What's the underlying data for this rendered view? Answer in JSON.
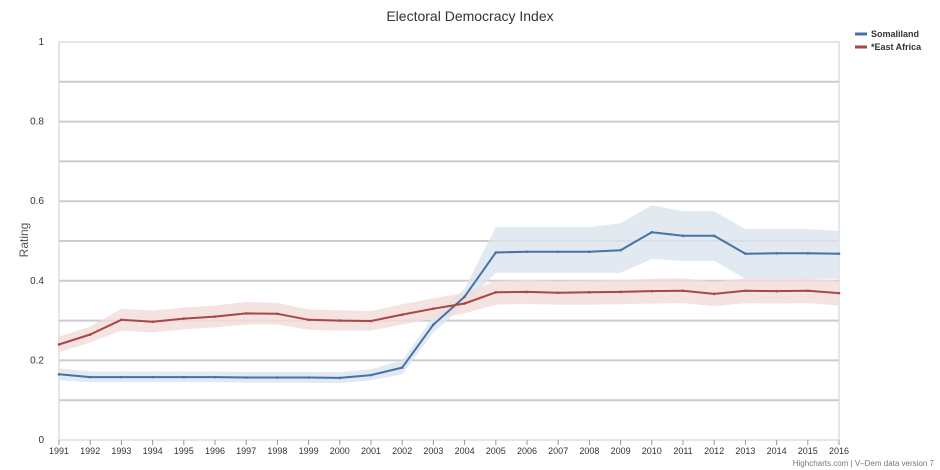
{
  "chart_data": {
    "type": "line",
    "title": "Electoral Democracy Index",
    "ylabel": "Rating",
    "xlabel": "",
    "ylim": [
      0,
      1
    ],
    "yticks": [
      0,
      0.2,
      0.4,
      0.6,
      0.8,
      1
    ],
    "ytick_labels": [
      "0",
      "0.2",
      "0.4",
      "0.6",
      "0.8",
      "1"
    ],
    "grid": true,
    "legend_position": "top-right",
    "categories": [
      "1991",
      "1992",
      "1993",
      "1994",
      "1995",
      "1996",
      "1997",
      "1998",
      "1999",
      "2000",
      "2001",
      "2002",
      "2003",
      "2004",
      "2005",
      "2006",
      "2007",
      "2008",
      "2009",
      "2010",
      "2011",
      "2012",
      "2013",
      "2014",
      "2015",
      "2016"
    ],
    "series": [
      {
        "name": "Somaliland",
        "color": "#4572A7",
        "band_color": "#dbe3ee",
        "values": [
          0.165,
          0.158,
          0.158,
          0.158,
          0.158,
          0.158,
          0.157,
          0.157,
          0.157,
          0.156,
          0.163,
          0.182,
          0.29,
          0.36,
          0.471,
          0.473,
          0.473,
          0.473,
          0.477,
          0.522,
          0.513,
          0.513,
          0.468,
          0.469,
          0.469,
          0.468
        ],
        "lower": [
          0.15,
          0.145,
          0.145,
          0.145,
          0.145,
          0.145,
          0.144,
          0.144,
          0.144,
          0.143,
          0.15,
          0.165,
          0.27,
          0.34,
          0.42,
          0.42,
          0.42,
          0.42,
          0.42,
          0.455,
          0.45,
          0.45,
          0.405,
          0.405,
          0.405,
          0.405
        ],
        "upper": [
          0.18,
          0.172,
          0.172,
          0.172,
          0.172,
          0.172,
          0.171,
          0.171,
          0.171,
          0.17,
          0.178,
          0.2,
          0.31,
          0.38,
          0.535,
          0.535,
          0.535,
          0.535,
          0.545,
          0.59,
          0.575,
          0.575,
          0.53,
          0.53,
          0.53,
          0.525
        ]
      },
      {
        "name": "*East Africa",
        "color": "#AA4643",
        "band_color": "#f2dcdb",
        "values": [
          0.24,
          0.265,
          0.302,
          0.297,
          0.305,
          0.31,
          0.318,
          0.317,
          0.302,
          0.3,
          0.299,
          0.315,
          0.33,
          0.343,
          0.371,
          0.372,
          0.37,
          0.371,
          0.372,
          0.374,
          0.375,
          0.367,
          0.375,
          0.374,
          0.375,
          0.369
        ],
        "lower": [
          0.22,
          0.245,
          0.275,
          0.27,
          0.278,
          0.283,
          0.29,
          0.29,
          0.277,
          0.275,
          0.275,
          0.29,
          0.305,
          0.318,
          0.34,
          0.342,
          0.34,
          0.34,
          0.341,
          0.343,
          0.344,
          0.336,
          0.344,
          0.343,
          0.344,
          0.338
        ],
        "upper": [
          0.26,
          0.285,
          0.33,
          0.325,
          0.333,
          0.338,
          0.347,
          0.345,
          0.328,
          0.326,
          0.324,
          0.341,
          0.356,
          0.369,
          0.4,
          0.402,
          0.4,
          0.401,
          0.402,
          0.405,
          0.406,
          0.398,
          0.406,
          0.405,
          0.406,
          0.4
        ]
      }
    ],
    "credits": "Highcharts.com | V–Dem data version 7"
  }
}
